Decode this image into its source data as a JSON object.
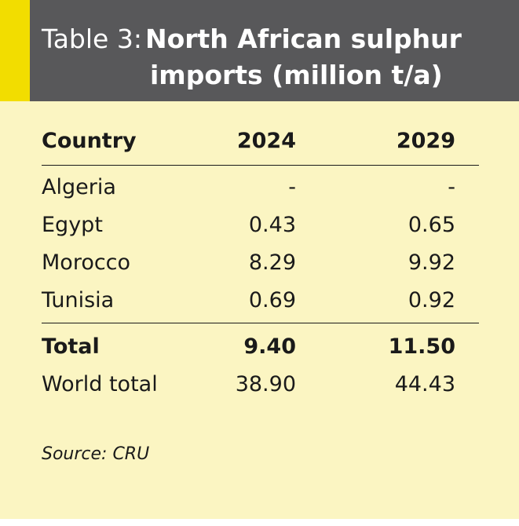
{
  "table": {
    "title_prefix": "Table 3:",
    "title_line1": "North African sulphur",
    "title_line2": "imports (million t/a)",
    "headers": [
      "Country",
      "2024",
      "2029"
    ],
    "rows": [
      {
        "country": "Algeria",
        "y2024": "-",
        "y2029": "-"
      },
      {
        "country": "Egypt",
        "y2024": "0.43",
        "y2029": "0.65"
      },
      {
        "country": "Morocco",
        "y2024": "8.29",
        "y2029": "9.92"
      },
      {
        "country": "Tunisia",
        "y2024": "0.69",
        "y2029": "0.92"
      }
    ],
    "total": {
      "country": "Total",
      "y2024": "9.40",
      "y2029": "11.50"
    },
    "world_total": {
      "country": "World total",
      "y2024": "38.90",
      "y2029": "44.43"
    },
    "source": "Source: CRU"
  },
  "colors": {
    "background": "#fbf5c2",
    "header": "#58585a",
    "accent": "#f2dd00"
  }
}
